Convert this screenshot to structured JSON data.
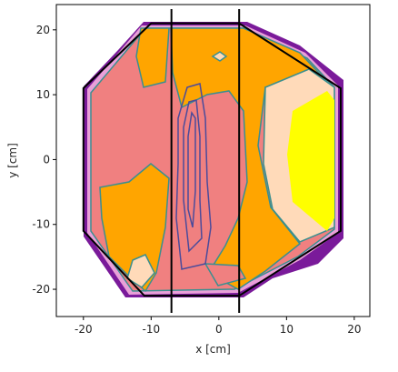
{
  "chart_data": {
    "type": "contour",
    "xlabel": "x [cm]",
    "ylabel": "y [cm]",
    "xlim": [
      -24,
      22.3
    ],
    "ylim": [
      -24.2,
      23.9
    ],
    "xticks": [
      -20,
      -10,
      0,
      10,
      20
    ],
    "yticks": [
      -20,
      -10,
      0,
      10,
      20
    ],
    "vlines": [
      -7,
      3
    ],
    "vline_color": "#000000",
    "outline": {
      "x": [
        -20,
        -20,
        -10,
        3,
        18,
        18,
        3,
        -11
      ],
      "y": [
        -11,
        11,
        21,
        21,
        11,
        -11,
        -21,
        -21
      ],
      "color": "#000000"
    }
  }
}
